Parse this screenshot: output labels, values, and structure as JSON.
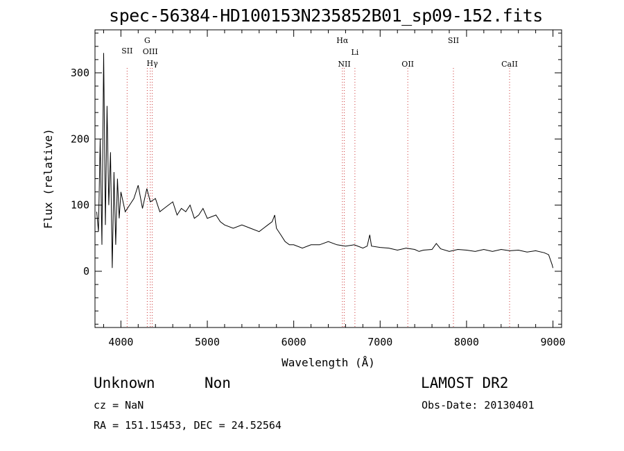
{
  "title": "spec-56384-HD100153N235852B01_sp09-152.fits",
  "chart_data": {
    "type": "line",
    "title": "spec-56384-HD100153N235852B01_sp09-152.fits",
    "xlabel": "Wavelength (Å)",
    "ylabel": "Flux (relative)",
    "xlim": [
      3700,
      9100
    ],
    "ylim": [
      -85,
      365
    ],
    "x_ticks": [
      4000,
      5000,
      6000,
      7000,
      8000,
      9000
    ],
    "y_ticks": [
      0,
      100,
      200,
      300
    ],
    "line_color": "#000000",
    "marker_color": "#cc3333",
    "series": [
      {
        "x": [
          3720,
          3740,
          3760,
          3780,
          3800,
          3820,
          3840,
          3860,
          3880,
          3900,
          3920,
          3940,
          3960,
          3980,
          4000,
          4050,
          4100,
          4150,
          4200,
          4250,
          4300,
          4340,
          4400,
          4450,
          4500,
          4550,
          4600,
          4650,
          4700,
          4750,
          4800,
          4850,
          4900,
          4950,
          5000,
          5100,
          5150,
          5200,
          5300,
          5400,
          5500,
          5600,
          5650,
          5700,
          5750,
          5780,
          5800,
          5850,
          5900,
          5950,
          6000,
          6100,
          6200,
          6300,
          6400,
          6500,
          6600,
          6700,
          6800,
          6850,
          6880,
          6900,
          7000,
          7100,
          7200,
          7300,
          7400,
          7450,
          7500,
          7600,
          7650,
          7700,
          7800,
          7900,
          8000,
          8100,
          8200,
          8300,
          8400,
          8500,
          8600,
          8700,
          8800,
          8900,
          8950,
          8990,
          9000
        ],
        "y": [
          90,
          60,
          200,
          40,
          330,
          70,
          250,
          100,
          180,
          5,
          150,
          40,
          140,
          80,
          120,
          90,
          100,
          110,
          130,
          95,
          125,
          105,
          110,
          90,
          95,
          100,
          105,
          85,
          95,
          90,
          100,
          80,
          85,
          95,
          80,
          85,
          75,
          70,
          65,
          70,
          65,
          60,
          65,
          70,
          75,
          85,
          65,
          55,
          45,
          40,
          40,
          35,
          40,
          40,
          45,
          40,
          38,
          40,
          35,
          38,
          55,
          38,
          36,
          35,
          32,
          35,
          33,
          30,
          32,
          33,
          42,
          34,
          30,
          33,
          32,
          30,
          33,
          30,
          33,
          31,
          32,
          29,
          31,
          28,
          25,
          10,
          5
        ]
      }
    ],
    "lines": [
      {
        "label": "SII",
        "x": 4072
      },
      {
        "label": "G",
        "x": 4305
      },
      {
        "label": "OIII",
        "x": 4340
      },
      {
        "label": "Hγ",
        "x": 4363
      },
      {
        "label": "Hα",
        "x": 6563
      },
      {
        "label": "NII",
        "x": 6585
      },
      {
        "label": "Li",
        "x": 6708
      },
      {
        "label": "OII",
        "x": 7320
      },
      {
        "label": "SII",
        "x": 7848
      },
      {
        "label": "CaII",
        "x": 8498
      }
    ]
  },
  "footer": {
    "class": "Unknown",
    "subclass": "Non",
    "survey": "LAMOST DR2",
    "cz": "cz = NaN",
    "obs_date": "Obs-Date: 20130401",
    "radec": "RA = 151.15453, DEC =  24.52564"
  }
}
